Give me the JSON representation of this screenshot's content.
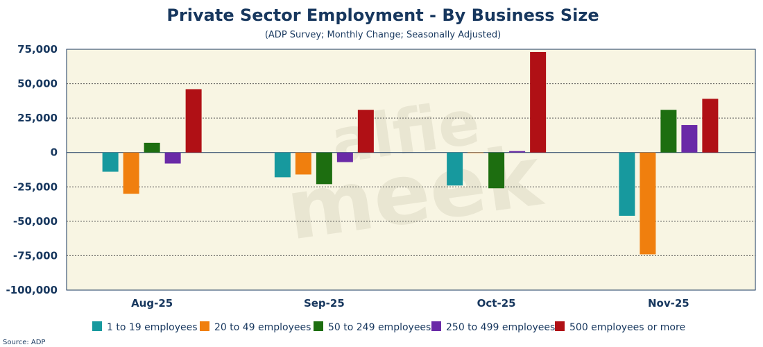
{
  "chart_data": {
    "type": "bar",
    "title": "Private Sector Employment - By Business Size",
    "subtitle": "(ADP Survey; Monthly Change; Seasonally Adjusted)",
    "xlabel": "",
    "ylabel": "",
    "categories": [
      "Aug-25",
      "Sep-25",
      "Oct-25",
      "Nov-25"
    ],
    "ylim": [
      -100000,
      75000
    ],
    "yticks": [
      75000,
      50000,
      25000,
      0,
      -25000,
      -50000,
      -75000,
      -100000
    ],
    "ytick_labels": [
      "75,000",
      "50,000",
      "25,000",
      "0",
      "-25,000",
      "-50,000",
      "-75,000",
      "-100,000"
    ],
    "grid": true,
    "legend_position": "bottom",
    "series": [
      {
        "name": "1 to 19 employees",
        "color": "#17999e",
        "values": [
          -14000,
          -18000,
          -24000,
          -46000
        ]
      },
      {
        "name": "20 to 49 employees",
        "color": "#f07f0e",
        "values": [
          -30000,
          -16000,
          0,
          -74000
        ]
      },
      {
        "name": "50 to 249 employees",
        "color": "#1d6e10",
        "values": [
          7000,
          -23000,
          -26000,
          31000
        ]
      },
      {
        "name": "250 to 499 employees",
        "color": "#6a2aa7",
        "values": [
          -8000,
          -7000,
          1000,
          20000
        ]
      },
      {
        "name": "500 employees or more",
        "color": "#b01015",
        "values": [
          46000,
          31000,
          73000,
          39000
        ]
      }
    ],
    "watermark": "alfie meek"
  },
  "source": "Source: ADP"
}
